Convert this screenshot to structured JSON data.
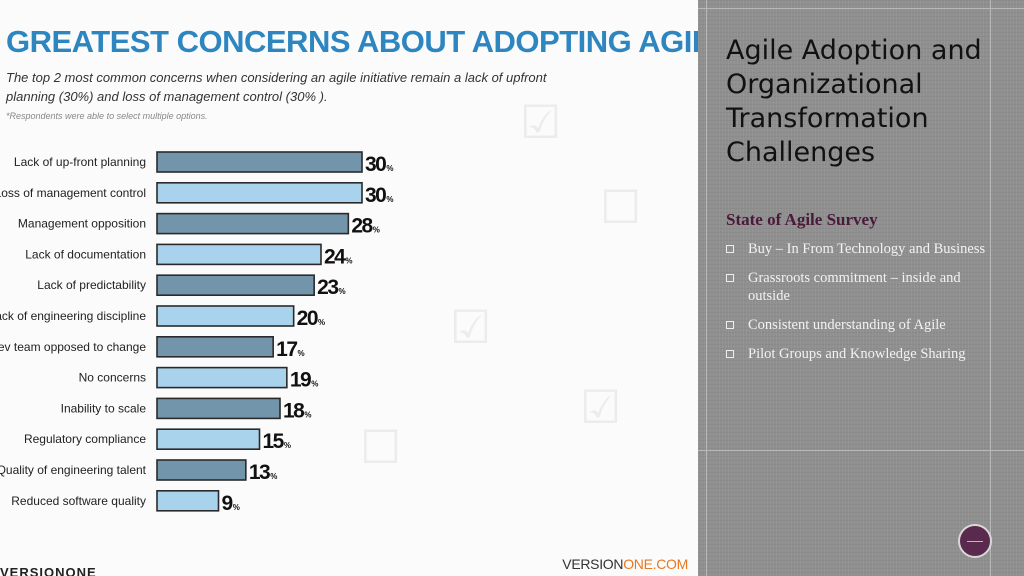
{
  "infographic": {
    "subtitle": "The top 2 most common concerns when considering an agile initiative remain a lack of upfront planning (30%) and loss of management control (30% ).",
    "footnote": "*Respondents were able to select multiple options.",
    "footer_brand_left": "VERSION",
    "footer_brand_right": "ONE.COM",
    "footer_brand_corner": "VERSIONONE"
  },
  "chart_data": {
    "type": "bar",
    "orientation": "horizontal",
    "title": "GREATEST CONCERNS ABOUT ADOPTING AGILE",
    "categories": [
      "Lack of up-front planning",
      "Loss of management control",
      "Management opposition",
      "Lack of documentation",
      "Lack of predictability",
      "Lack of engineering discipline",
      "Dev team opposed to change",
      "No concerns",
      "Inability to scale",
      "Regulatory compliance",
      "Quality of engineering talent",
      "Reduced software quality"
    ],
    "values": [
      30,
      30,
      28,
      24,
      23,
      20,
      17,
      19,
      18,
      15,
      13,
      9
    ],
    "unit": "%",
    "xlim": [
      0,
      30
    ],
    "colors": {
      "dark": "#7295ab",
      "light": "#a9d3ec",
      "outline": "#2a2a2a"
    }
  },
  "slide": {
    "title": "Agile Adoption and Organizational Transformation Challenges",
    "section_heading": "State of Agile Survey",
    "bullets": [
      "Buy – In From Technology and Business",
      "Grassroots commitment – inside and outside",
      "Consistent understanding of Agile",
      "Pilot Groups and Knowledge Sharing"
    ]
  }
}
